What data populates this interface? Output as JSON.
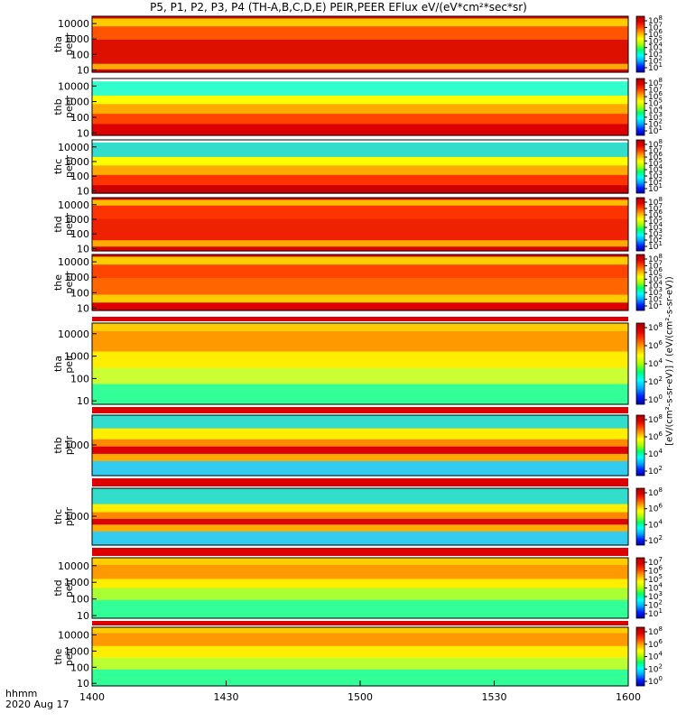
{
  "title": "P5, P1, P2, P3, P4 (TH-A,B,C,D,E) PEIR,PEER EFlux eV/(eV*cm²*sec*sr)",
  "time_axis": {
    "label_line1": "hhmm",
    "label_line2": "2020 Aug 17",
    "ticks": [
      "1400",
      "1430",
      "1500",
      "1530",
      "1600"
    ]
  },
  "colorbar": {
    "unit_label": "[eV/(cm²-s-sr-eV)] / (eV/(cm²-s-sr-eV))",
    "colors": [
      "#0000aa",
      "#0022ff",
      "#00aaff",
      "#00ffff",
      "#00ff66",
      "#aaff00",
      "#ffff00",
      "#ffaa00",
      "#ff4400",
      "#dd0000",
      "#aa0000"
    ]
  },
  "chart_data": {
    "type": "heatmap",
    "x_range": [
      "1400",
      "1600"
    ],
    "y_scale": "log",
    "panels": [
      {
        "probe": "tha",
        "species": "peer",
        "ylabel": "tha peer",
        "yticks": [
          "10000",
          "1000",
          "100",
          "10"
        ],
        "ylim": [
          7,
          30000
        ],
        "cb_ticks": [
          "10^8",
          "10^7",
          "10^6",
          "10^5",
          "10^4",
          "10^3",
          "10^2",
          "10^1"
        ]
      },
      {
        "probe": "thb",
        "species": "peer",
        "ylabel": "thb peer",
        "yticks": [
          "10000",
          "1000",
          "100",
          "10"
        ],
        "ylim": [
          7,
          30000
        ],
        "cb_ticks": [
          "10^8",
          "10^7",
          "10^6",
          "10^5",
          "10^4",
          "10^3",
          "10^2",
          "10^1"
        ]
      },
      {
        "probe": "thc",
        "species": "peer",
        "ylabel": "thc peer",
        "yticks": [
          "10000",
          "1000",
          "100",
          "10"
        ],
        "ylim": [
          7,
          30000
        ],
        "cb_ticks": [
          "10^8",
          "10^7",
          "10^6",
          "10^5",
          "10^4",
          "10^3",
          "10^2",
          "10^1"
        ]
      },
      {
        "probe": "thd",
        "species": "peer",
        "ylabel": "thd peer",
        "yticks": [
          "10000",
          "1000",
          "100",
          "10"
        ],
        "ylim": [
          7,
          30000
        ],
        "cb_ticks": [
          "10^8",
          "10^7",
          "10^6",
          "10^5",
          "10^4",
          "10^3",
          "10^2",
          "10^1"
        ]
      },
      {
        "probe": "the",
        "species": "peer",
        "ylabel": "the peer",
        "yticks": [
          "10000",
          "1000",
          "100",
          "10"
        ],
        "ylim": [
          7,
          30000
        ],
        "cb_ticks": [
          "10^8",
          "10^7",
          "10^6",
          "10^5",
          "10^4",
          "10^3",
          "10^2",
          "10^1"
        ]
      },
      {
        "probe": "tha",
        "species": "peir",
        "ylabel": "tha peir",
        "yticks": [
          "10000",
          "1000",
          "100",
          "10"
        ],
        "ylim": [
          7,
          30000
        ],
        "cb_ticks": [
          "10^8",
          "10^6",
          "10^4",
          "10^2",
          "10^0"
        ]
      },
      {
        "probe": "thb",
        "species": "peir",
        "ylabel": "thb peir",
        "yticks": [
          "1000"
        ],
        "ylim": [
          30,
          30000
        ],
        "cb_ticks": [
          "10^8",
          "10^6",
          "10^4",
          "10^2"
        ]
      },
      {
        "probe": "thc",
        "species": "peir",
        "ylabel": "thc peir",
        "yticks": [
          "1000"
        ],
        "ylim": [
          30,
          30000
        ],
        "cb_ticks": [
          "10^8",
          "10^6",
          "10^4",
          "10^2"
        ]
      },
      {
        "probe": "thd",
        "species": "peir",
        "ylabel": "thd peir",
        "yticks": [
          "10000",
          "1000",
          "100",
          "10"
        ],
        "ylim": [
          7,
          30000
        ],
        "cb_ticks": [
          "10^7",
          "10^6",
          "10^5",
          "10^4",
          "10^3",
          "10^2",
          "10^1"
        ]
      },
      {
        "probe": "the",
        "species": "peir",
        "ylabel": "the peir",
        "yticks": [
          "10000",
          "1000",
          "100",
          "10"
        ],
        "ylim": [
          7,
          30000
        ],
        "cb_ticks": [
          "10^8",
          "10^6",
          "10^4",
          "10^2",
          "10^0"
        ]
      }
    ]
  }
}
